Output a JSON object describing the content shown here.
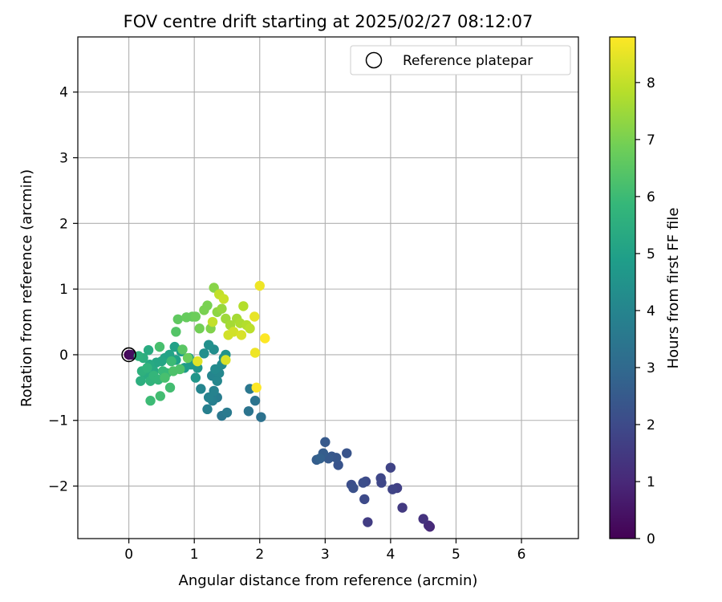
{
  "chart_data": {
    "type": "scatter",
    "title": "FOV centre drift starting at 2025/02/27 08:12:07",
    "xlabel": "Angular distance from reference (arcmin)",
    "ylabel": "Rotation from reference (arcmin)",
    "xlim": [
      -0.78,
      6.87
    ],
    "ylim": [
      -2.8,
      4.84
    ],
    "xticks": [
      0,
      1,
      2,
      3,
      4,
      5,
      6
    ],
    "yticks": [
      -2,
      -1,
      0,
      1,
      2,
      3,
      4
    ],
    "xtick_labels": [
      "0",
      "1",
      "2",
      "3",
      "4",
      "5",
      "6"
    ],
    "ytick_labels": [
      "−2",
      "−1",
      "0",
      "1",
      "2",
      "3",
      "4"
    ],
    "grid": true,
    "legend": {
      "position": "top-right",
      "entries": [
        {
          "label": "Reference platepar",
          "marker": "open-circle"
        }
      ]
    },
    "reference_point": {
      "x": 0,
      "y": 0
    },
    "colorbar": {
      "label": "Hours from first FF file",
      "range": [
        0,
        8.8
      ],
      "ticks": [
        0,
        1,
        2,
        3,
        4,
        5,
        6,
        7,
        8
      ],
      "tick_labels": [
        "0",
        "1",
        "2",
        "3",
        "4",
        "5",
        "6",
        "7",
        "8"
      ],
      "colormap": "viridis",
      "colors": [
        "#440154",
        "#482878",
        "#3e4989",
        "#31688e",
        "#26828e",
        "#1f9e89",
        "#35b779",
        "#6ece58",
        "#b5de2b",
        "#fde725"
      ]
    },
    "series": [
      {
        "points": [
          [
            0.0,
            0.0,
            0.0
          ],
          [
            0.03,
            0.0,
            0.3
          ],
          [
            4.6,
            -2.62,
            1.0
          ],
          [
            4.58,
            -2.6,
            1.1
          ],
          [
            4.5,
            -2.5,
            1.3
          ],
          [
            4.18,
            -2.33,
            1.5
          ],
          [
            3.65,
            -2.55,
            1.6
          ],
          [
            4.1,
            -2.03,
            1.7
          ],
          [
            4.03,
            -2.05,
            1.8
          ],
          [
            4.0,
            -1.72,
            1.8
          ],
          [
            3.85,
            -1.88,
            1.9
          ],
          [
            3.86,
            -1.95,
            1.9
          ],
          [
            3.6,
            -2.2,
            2.0
          ],
          [
            3.62,
            -1.93,
            2.0
          ],
          [
            3.58,
            -1.95,
            2.1
          ],
          [
            3.4,
            -1.98,
            2.1
          ],
          [
            3.43,
            -2.03,
            2.2
          ],
          [
            3.33,
            -1.5,
            2.3
          ],
          [
            3.2,
            -1.68,
            2.3
          ],
          [
            3.17,
            -1.57,
            2.4
          ],
          [
            3.1,
            -1.55,
            2.4
          ],
          [
            3.05,
            -1.58,
            2.5
          ],
          [
            3.0,
            -1.33,
            2.5
          ],
          [
            2.97,
            -1.5,
            2.6
          ],
          [
            2.87,
            -1.6,
            2.6
          ],
          [
            2.92,
            -1.58,
            2.7
          ],
          [
            2.02,
            -0.95,
            3.3
          ],
          [
            1.93,
            -0.7,
            3.4
          ],
          [
            1.83,
            -0.86,
            3.4
          ],
          [
            1.85,
            -0.52,
            3.5
          ],
          [
            1.42,
            -0.93,
            3.5
          ],
          [
            1.5,
            -0.88,
            3.6
          ],
          [
            1.35,
            -0.65,
            3.7
          ],
          [
            1.28,
            -0.7,
            3.8
          ],
          [
            1.2,
            -0.83,
            3.8
          ],
          [
            1.22,
            -0.65,
            3.9
          ],
          [
            1.3,
            -0.55,
            3.9
          ],
          [
            1.1,
            -0.52,
            4.0
          ],
          [
            1.27,
            -0.32,
            4.0
          ],
          [
            1.38,
            -0.28,
            4.1
          ],
          [
            1.35,
            -0.4,
            4.1
          ],
          [
            1.32,
            -0.22,
            4.2
          ],
          [
            1.42,
            -0.15,
            4.2
          ],
          [
            1.45,
            -0.05,
            4.3
          ],
          [
            1.3,
            0.08,
            4.3
          ],
          [
            1.22,
            0.15,
            4.4
          ],
          [
            1.15,
            0.02,
            4.4
          ],
          [
            1.48,
            0.0,
            4.5
          ],
          [
            1.05,
            -0.2,
            4.6
          ],
          [
            1.02,
            -0.35,
            4.6
          ],
          [
            0.95,
            -0.15,
            4.7
          ],
          [
            0.85,
            -0.2,
            4.8
          ],
          [
            0.92,
            -0.05,
            4.9
          ],
          [
            0.8,
            0.05,
            4.9
          ],
          [
            0.7,
            0.12,
            5.0
          ],
          [
            0.72,
            -0.08,
            5.0
          ],
          [
            0.62,
            0.0,
            5.1
          ],
          [
            0.55,
            -0.05,
            5.1
          ],
          [
            0.5,
            -0.1,
            5.2
          ],
          [
            0.42,
            -0.12,
            5.2
          ],
          [
            0.38,
            -0.25,
            5.3
          ],
          [
            0.32,
            -0.15,
            5.3
          ],
          [
            0.3,
            0.07,
            5.4
          ],
          [
            0.25,
            -0.3,
            5.4
          ],
          [
            0.22,
            -0.05,
            5.5
          ],
          [
            0.18,
            -0.4,
            5.5
          ],
          [
            0.2,
            -0.25,
            5.6
          ],
          [
            0.15,
            -0.02,
            5.6
          ],
          [
            0.28,
            -0.2,
            5.7
          ],
          [
            0.33,
            -0.4,
            5.7
          ],
          [
            0.38,
            -0.32,
            5.8
          ],
          [
            0.45,
            -0.38,
            5.8
          ],
          [
            0.52,
            -0.25,
            5.9
          ],
          [
            0.58,
            -0.28,
            5.9
          ],
          [
            0.65,
            -0.1,
            6.0
          ],
          [
            0.33,
            -0.7,
            6.0
          ],
          [
            0.48,
            -0.63,
            6.1
          ],
          [
            0.63,
            -0.5,
            6.1
          ],
          [
            0.55,
            -0.35,
            6.2
          ],
          [
            0.47,
            0.12,
            6.2
          ],
          [
            0.68,
            -0.25,
            6.3
          ],
          [
            0.78,
            -0.22,
            6.3
          ],
          [
            0.72,
            0.35,
            6.4
          ],
          [
            0.82,
            0.08,
            6.5
          ],
          [
            0.75,
            0.54,
            6.6
          ],
          [
            0.88,
            0.57,
            6.7
          ],
          [
            0.97,
            0.58,
            6.7
          ],
          [
            1.02,
            0.58,
            6.8
          ],
          [
            0.9,
            -0.05,
            6.8
          ],
          [
            1.08,
            0.4,
            6.9
          ],
          [
            1.15,
            0.68,
            7.0
          ],
          [
            1.2,
            0.75,
            7.0
          ],
          [
            1.25,
            0.4,
            7.1
          ],
          [
            1.3,
            1.02,
            7.2
          ],
          [
            1.35,
            0.65,
            7.3
          ],
          [
            1.42,
            0.7,
            7.4
          ],
          [
            1.48,
            0.55,
            7.5
          ],
          [
            1.55,
            0.45,
            7.6
          ],
          [
            1.65,
            0.55,
            7.6
          ],
          [
            1.7,
            0.48,
            7.7
          ],
          [
            1.75,
            0.74,
            7.8
          ],
          [
            1.8,
            0.45,
            7.8
          ],
          [
            1.85,
            0.4,
            7.9
          ],
          [
            1.28,
            0.5,
            8.0
          ],
          [
            1.38,
            0.92,
            8.0
          ],
          [
            1.45,
            0.85,
            8.1
          ],
          [
            1.52,
            0.3,
            8.2
          ],
          [
            1.6,
            0.35,
            8.2
          ],
          [
            1.72,
            0.3,
            8.3
          ],
          [
            1.48,
            -0.08,
            8.3
          ],
          [
            1.05,
            -0.1,
            8.4
          ],
          [
            1.92,
            0.58,
            8.5
          ],
          [
            1.93,
            0.03,
            8.6
          ],
          [
            2.0,
            1.05,
            8.6
          ],
          [
            1.95,
            -0.5,
            8.8
          ],
          [
            2.08,
            0.25,
            8.8
          ]
        ]
      }
    ]
  }
}
